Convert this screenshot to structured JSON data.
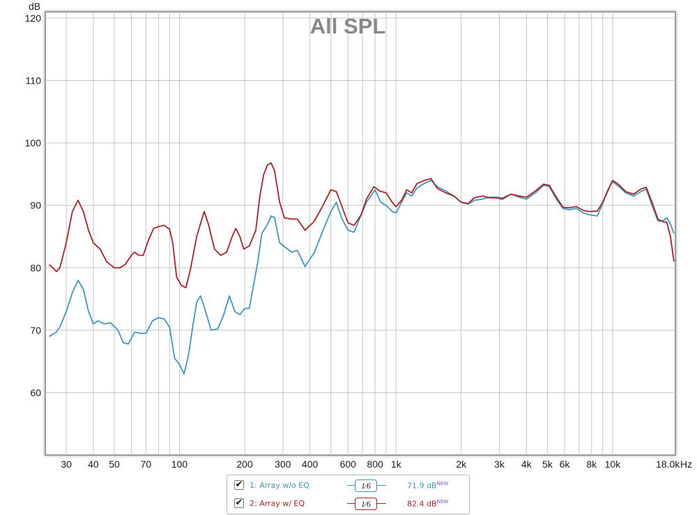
{
  "chart_data": {
    "type": "line",
    "title": "All SPL",
    "ylabel": "dB",
    "xlabel": "Hz",
    "xscale": "log",
    "xlim": [
      24,
      19500
    ],
    "ylim": [
      50,
      121
    ],
    "grid": true,
    "y_ticks": [
      60,
      70,
      80,
      90,
      100,
      110,
      120
    ],
    "x_ticks": [
      {
        "v": 30,
        "label": "30"
      },
      {
        "v": 40,
        "label": "40"
      },
      {
        "v": 50,
        "label": "50"
      },
      {
        "v": 70,
        "label": "70"
      },
      {
        "v": 100,
        "label": "100"
      },
      {
        "v": 200,
        "label": "200"
      },
      {
        "v": 300,
        "label": "300"
      },
      {
        "v": 400,
        "label": "400"
      },
      {
        "v": 600,
        "label": "600"
      },
      {
        "v": 800,
        "label": "800"
      },
      {
        "v": 1000,
        "label": "1k"
      },
      {
        "v": 2000,
        "label": "2k"
      },
      {
        "v": 3000,
        "label": "3k"
      },
      {
        "v": 4000,
        "label": "4k"
      },
      {
        "v": 5000,
        "label": "5k"
      },
      {
        "v": 6000,
        "label": "6k"
      },
      {
        "v": 8000,
        "label": "8k"
      },
      {
        "v": 10000,
        "label": "10k"
      },
      {
        "v": 18000,
        "label": "18.0k"
      }
    ],
    "grid_x": [
      30,
      40,
      50,
      60,
      70,
      80,
      90,
      100,
      200,
      300,
      400,
      500,
      600,
      700,
      800,
      900,
      1000,
      2000,
      3000,
      4000,
      5000,
      6000,
      7000,
      8000,
      9000,
      10000,
      20000
    ],
    "series": [
      {
        "name": "Array w/o EQ",
        "color": "#3d97bd",
        "points": [
          [
            25,
            69
          ],
          [
            27,
            69.7
          ],
          [
            28,
            70.5
          ],
          [
            30,
            73
          ],
          [
            32,
            76
          ],
          [
            34,
            78
          ],
          [
            36,
            76.5
          ],
          [
            38,
            73
          ],
          [
            40,
            71
          ],
          [
            42,
            71.5
          ],
          [
            45,
            71
          ],
          [
            48,
            71.2
          ],
          [
            52,
            70
          ],
          [
            55,
            68
          ],
          [
            58,
            67.8
          ],
          [
            62,
            69.7
          ],
          [
            66,
            69.5
          ],
          [
            70,
            69.5
          ],
          [
            75,
            71.5
          ],
          [
            80,
            72
          ],
          [
            85,
            71.8
          ],
          [
            90,
            70.5
          ],
          [
            95,
            65.5
          ],
          [
            100,
            64.5
          ],
          [
            105,
            63
          ],
          [
            110,
            66
          ],
          [
            115,
            70.5
          ],
          [
            120,
            74.5
          ],
          [
            125,
            75.5
          ],
          [
            132,
            73
          ],
          [
            140,
            70
          ],
          [
            150,
            70.2
          ],
          [
            160,
            72.5
          ],
          [
            170,
            75.5
          ],
          [
            180,
            73
          ],
          [
            190,
            72.5
          ],
          [
            200,
            73.5
          ],
          [
            210,
            73.5
          ],
          [
            230,
            81
          ],
          [
            240,
            85.5
          ],
          [
            255,
            87
          ],
          [
            265,
            88.3
          ],
          [
            275,
            88
          ],
          [
            290,
            84
          ],
          [
            310,
            83.2
          ],
          [
            330,
            82.5
          ],
          [
            350,
            82.8
          ],
          [
            380,
            80.2
          ],
          [
            420,
            82.5
          ],
          [
            460,
            86
          ],
          [
            500,
            89
          ],
          [
            530,
            90.5
          ],
          [
            560,
            88
          ],
          [
            600,
            86
          ],
          [
            640,
            85.7
          ],
          [
            690,
            88.5
          ],
          [
            730,
            90.5
          ],
          [
            800,
            92.5
          ],
          [
            850,
            90.5
          ],
          [
            900,
            90
          ],
          [
            960,
            89
          ],
          [
            1000,
            88.8
          ],
          [
            1060,
            90.5
          ],
          [
            1120,
            92
          ],
          [
            1180,
            91.5
          ],
          [
            1250,
            92.8
          ],
          [
            1350,
            93.5
          ],
          [
            1450,
            94
          ],
          [
            1550,
            93
          ],
          [
            1700,
            92.3
          ],
          [
            1850,
            91.5
          ],
          [
            2000,
            90.5
          ],
          [
            2150,
            90.2
          ],
          [
            2300,
            90.8
          ],
          [
            2500,
            91
          ],
          [
            2700,
            91.3
          ],
          [
            2900,
            91.3
          ],
          [
            3100,
            91.2
          ],
          [
            3400,
            91.8
          ],
          [
            3700,
            91.3
          ],
          [
            4000,
            91
          ],
          [
            4400,
            92
          ],
          [
            4800,
            93.2
          ],
          [
            5100,
            93
          ],
          [
            5500,
            91
          ],
          [
            5900,
            89.5
          ],
          [
            6300,
            89.3
          ],
          [
            6800,
            89.5
          ],
          [
            7300,
            88.8
          ],
          [
            7800,
            88.5
          ],
          [
            8500,
            88.3
          ],
          [
            9000,
            90.3
          ],
          [
            9500,
            92.5
          ],
          [
            10000,
            93.8
          ],
          [
            10700,
            93
          ],
          [
            11500,
            92
          ],
          [
            12500,
            91.5
          ],
          [
            13500,
            92.2
          ],
          [
            14300,
            92.6
          ],
          [
            15200,
            90
          ],
          [
            16200,
            87.5
          ],
          [
            17000,
            87.5
          ],
          [
            17800,
            88
          ],
          [
            18500,
            87
          ],
          [
            19200,
            85.5
          ]
        ]
      },
      {
        "name": "Array w/ EQ",
        "color": "#b01f22",
        "points": [
          [
            25,
            80.5
          ],
          [
            26,
            80
          ],
          [
            27,
            79.4
          ],
          [
            28,
            80
          ],
          [
            30,
            84
          ],
          [
            32,
            89
          ],
          [
            34,
            90.8
          ],
          [
            36,
            89
          ],
          [
            38,
            86
          ],
          [
            40,
            84
          ],
          [
            43,
            83
          ],
          [
            46,
            81
          ],
          [
            50,
            80
          ],
          [
            53,
            80
          ],
          [
            56,
            80.5
          ],
          [
            60,
            82
          ],
          [
            62,
            82.5
          ],
          [
            65,
            82
          ],
          [
            68,
            82
          ],
          [
            72,
            84.5
          ],
          [
            76,
            86.3
          ],
          [
            80,
            86.6
          ],
          [
            85,
            86.8
          ],
          [
            90,
            86.2
          ],
          [
            93,
            84
          ],
          [
            97,
            78.5
          ],
          [
            102,
            77.2
          ],
          [
            107,
            76.8
          ],
          [
            112,
            79.5
          ],
          [
            120,
            85
          ],
          [
            130,
            89
          ],
          [
            136,
            87
          ],
          [
            145,
            83
          ],
          [
            155,
            82
          ],
          [
            165,
            82.5
          ],
          [
            175,
            85
          ],
          [
            182,
            86.3
          ],
          [
            190,
            85
          ],
          [
            198,
            83
          ],
          [
            210,
            83.5
          ],
          [
            225,
            86
          ],
          [
            235,
            91.5
          ],
          [
            245,
            95
          ],
          [
            255,
            96.5
          ],
          [
            265,
            96.8
          ],
          [
            275,
            95.5
          ],
          [
            290,
            90.5
          ],
          [
            305,
            88
          ],
          [
            330,
            87.8
          ],
          [
            350,
            87.8
          ],
          [
            380,
            86
          ],
          [
            420,
            87.5
          ],
          [
            460,
            90
          ],
          [
            500,
            92.5
          ],
          [
            530,
            92.2
          ],
          [
            560,
            90
          ],
          [
            600,
            87.2
          ],
          [
            640,
            86.8
          ],
          [
            690,
            88.5
          ],
          [
            730,
            91
          ],
          [
            790,
            93
          ],
          [
            840,
            92.3
          ],
          [
            900,
            92
          ],
          [
            960,
            90.5
          ],
          [
            1000,
            89.8
          ],
          [
            1060,
            90.8
          ],
          [
            1120,
            92.5
          ],
          [
            1180,
            92
          ],
          [
            1250,
            93.5
          ],
          [
            1350,
            94
          ],
          [
            1450,
            94.3
          ],
          [
            1550,
            92.7
          ],
          [
            1700,
            92
          ],
          [
            1850,
            91.5
          ],
          [
            2000,
            90.5
          ],
          [
            2150,
            90.3
          ],
          [
            2300,
            91.2
          ],
          [
            2500,
            91.5
          ],
          [
            2700,
            91.2
          ],
          [
            2900,
            91.2
          ],
          [
            3100,
            91
          ],
          [
            3400,
            91.8
          ],
          [
            3700,
            91.5
          ],
          [
            4000,
            91.3
          ],
          [
            4400,
            92.3
          ],
          [
            4800,
            93.4
          ],
          [
            5100,
            93.2
          ],
          [
            5500,
            91.3
          ],
          [
            5900,
            89.7
          ],
          [
            6300,
            89.6
          ],
          [
            6800,
            89.8
          ],
          [
            7300,
            89.2
          ],
          [
            7800,
            89
          ],
          [
            8500,
            89.1
          ],
          [
            9000,
            90.5
          ],
          [
            9500,
            92.3
          ],
          [
            10000,
            94
          ],
          [
            10700,
            93.3
          ],
          [
            11500,
            92.2
          ],
          [
            12500,
            91.8
          ],
          [
            13500,
            92.6
          ],
          [
            14300,
            92.9
          ],
          [
            15200,
            90.5
          ],
          [
            16200,
            87.8
          ],
          [
            17000,
            87.4
          ],
          [
            17800,
            87.3
          ],
          [
            18500,
            85
          ],
          [
            19200,
            81
          ]
        ]
      }
    ]
  },
  "legend": {
    "rows": [
      {
        "checked": true,
        "label": "1: Array w/o EQ",
        "smoothing": "1⁄6",
        "value": "71.9 dB",
        "value_tag": "NEW",
        "color": "#3d97bd"
      },
      {
        "checked": true,
        "label": "2: Array w/ EQ",
        "smoothing": "1⁄6",
        "value": "82.4 dB",
        "value_tag": "NEW",
        "color": "#b01f22"
      }
    ]
  }
}
